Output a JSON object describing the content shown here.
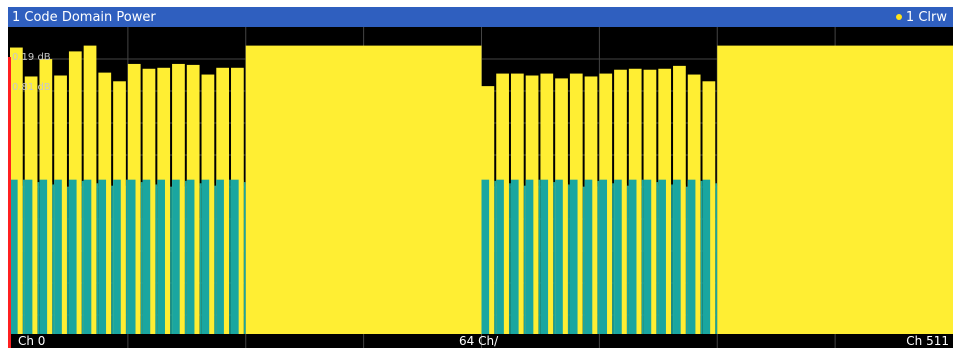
{
  "window": {
    "title": "1 Code Domain Power",
    "trace_label": "1 Clrw",
    "trace_color": "#ffe31a",
    "title_bg": "#2f5fbf"
  },
  "axes": {
    "x_start": "Ch 0",
    "x_center": "64 Ch/",
    "x_end": "Ch 511",
    "y_tick_labels": [
      "0.19 dB",
      "0.81 dB"
    ]
  },
  "colors": {
    "background": "#000000",
    "grid": "#444444",
    "active_bar": "#ffee33",
    "inactive_bar": "#1aa6a0",
    "marker": "#ff2020"
  },
  "chart_data": {
    "type": "bar",
    "title": "1 Code Domain Power",
    "x_range": [
      0,
      511
    ],
    "x_ticks": [
      "Ch 0",
      "64 Ch/",
      "Ch 511"
    ],
    "y_tick_labels": [
      "0.19 dB",
      "0.81 dB"
    ],
    "grid": true,
    "series": [
      {
        "name": "1 Clrw",
        "blocks": [
          {
            "start_channel": 0,
            "count": 16,
            "values_db": [
              -0.3,
              -3.3,
              -1.5,
              -3.2,
              -0.7,
              -0.1,
              -2.9,
              -3.8,
              -2.0,
              -2.5,
              -2.4,
              -2.0,
              -2.1,
              -3.1,
              -2.4,
              -2.4
            ]
          },
          {
            "start_channel": 128,
            "count": 1,
            "values_db": [
              -0.1
            ]
          },
          {
            "start_channel": 256,
            "count": 16,
            "values_db": [
              -4.3,
              -3.0,
              -3.0,
              -3.2,
              -3.0,
              -3.5,
              -3.0,
              -3.3,
              -3.0,
              -2.6,
              -2.5,
              -2.6,
              -2.5,
              -2.2,
              -3.1,
              -3.8
            ]
          },
          {
            "start_channel": 384,
            "count": 1,
            "values_db": [
              -0.1
            ]
          }
        ],
        "inactive_level_db": -14.0
      }
    ],
    "marker_channel": 0
  }
}
